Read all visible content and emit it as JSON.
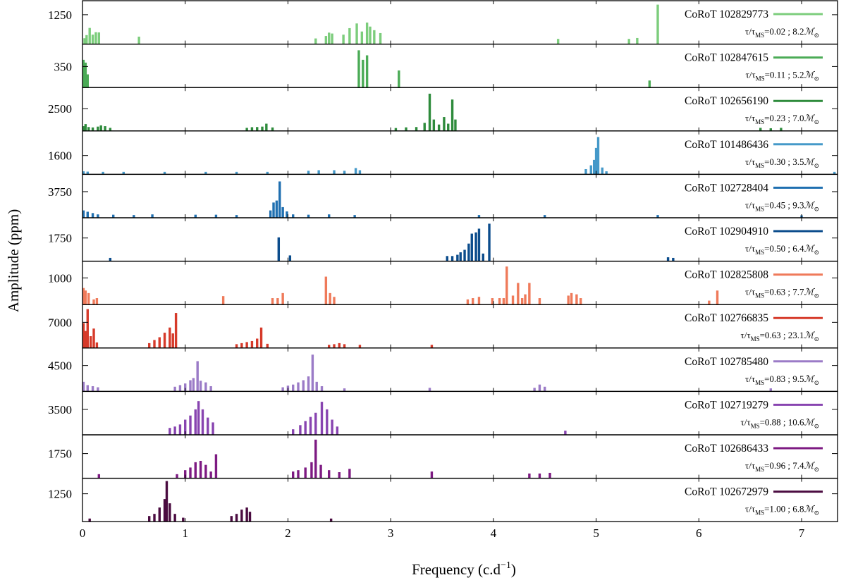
{
  "chart_data": {
    "type": "bar",
    "xlabel": "Frequency (c.d",
    "xlabel_sup": "−1",
    "xlabel_close": ")",
    "ylabel": "Amplitude (ppm)",
    "xlim": [
      0,
      7.35
    ],
    "xticks": [
      0,
      1,
      2,
      3,
      4,
      5,
      6,
      7
    ],
    "panels": [
      {
        "star": "CoRoT 102829773",
        "color": "#7ccd7c",
        "tau": "0.02",
        "mass": "8.2",
        "ytick": 1250,
        "ytick_label": "1250",
        "ymax": 1750,
        "peaks": [
          [
            0.02,
            200
          ],
          [
            0.04,
            340
          ],
          [
            0.07,
            660
          ],
          [
            0.1,
            360
          ],
          [
            0.13,
            470
          ],
          [
            0.16,
            460
          ],
          [
            0.55,
            270
          ],
          [
            2.27,
            190
          ],
          [
            2.37,
            300
          ],
          [
            2.4,
            450
          ],
          [
            2.43,
            410
          ],
          [
            2.54,
            360
          ],
          [
            2.6,
            650
          ],
          [
            2.67,
            860
          ],
          [
            2.72,
            500
          ],
          [
            2.77,
            900
          ],
          [
            2.8,
            720
          ],
          [
            2.84,
            560
          ],
          [
            2.9,
            430
          ],
          [
            4.63,
            170
          ],
          [
            5.32,
            170
          ],
          [
            5.4,
            210
          ],
          [
            5.6,
            1700
          ]
        ]
      },
      {
        "star": "CoRoT 102847615",
        "color": "#4bab56",
        "tau": "0.11",
        "mass": "5.2",
        "ytick": 350,
        "ytick_label": "350",
        "ymax": 700,
        "peaks": [
          [
            0.01,
            470
          ],
          [
            0.03,
            420
          ],
          [
            0.05,
            210
          ],
          [
            2.69,
            640
          ],
          [
            2.73,
            470
          ],
          [
            2.77,
            550
          ],
          [
            3.08,
            280
          ],
          [
            5.52,
            100
          ]
        ]
      },
      {
        "star": "CoRoT 102656190",
        "color": "#2e8b3c",
        "tau": "0.23",
        "mass": "7.0",
        "ytick": 2500,
        "ytick_label": "2500",
        "ymax": 4700,
        "peaks": [
          [
            0.01,
            400
          ],
          [
            0.03,
            650
          ],
          [
            0.06,
            300
          ],
          [
            0.1,
            250
          ],
          [
            0.15,
            350
          ],
          [
            0.18,
            500
          ],
          [
            0.22,
            400
          ],
          [
            0.27,
            200
          ],
          [
            1.6,
            200
          ],
          [
            1.65,
            280
          ],
          [
            1.7,
            300
          ],
          [
            1.75,
            350
          ],
          [
            1.79,
            700
          ],
          [
            1.85,
            250
          ],
          [
            3.05,
            180
          ],
          [
            3.15,
            260
          ],
          [
            3.25,
            300
          ],
          [
            3.33,
            800
          ],
          [
            3.38,
            4300
          ],
          [
            3.42,
            1200
          ],
          [
            3.47,
            600
          ],
          [
            3.52,
            1500
          ],
          [
            3.56,
            700
          ],
          [
            3.6,
            3600
          ],
          [
            3.63,
            1200
          ],
          [
            6.6,
            200
          ],
          [
            6.7,
            150
          ],
          [
            6.8,
            200
          ]
        ]
      },
      {
        "star": "CoRoT 101486436",
        "color": "#4599c9",
        "tau": "0.30",
        "mass": "3.5",
        "ytick": 1600,
        "ytick_label": "1600",
        "ymax": 3600,
        "peaks": [
          [
            0.01,
            150
          ],
          [
            0.05,
            120
          ],
          [
            0.2,
            100
          ],
          [
            0.4,
            100
          ],
          [
            0.8,
            100
          ],
          [
            1.2,
            100
          ],
          [
            1.5,
            100
          ],
          [
            1.8,
            100
          ],
          [
            2.2,
            200
          ],
          [
            2.3,
            250
          ],
          [
            2.45,
            250
          ],
          [
            2.55,
            200
          ],
          [
            2.66,
            450
          ],
          [
            2.7,
            250
          ],
          [
            4.9,
            350
          ],
          [
            4.95,
            700
          ],
          [
            4.98,
            1200
          ],
          [
            5.0,
            2300
          ],
          [
            5.02,
            3300
          ],
          [
            5.06,
            500
          ],
          [
            5.1,
            150
          ],
          [
            7.32,
            100
          ]
        ]
      },
      {
        "star": "CoRoT 102728404",
        "color": "#1f6fb0",
        "tau": "0.45",
        "mass": "9.3",
        "ytick": 3750,
        "ytick_label": "3750",
        "ymax": 5950,
        "peaks": [
          [
            0.01,
            900
          ],
          [
            0.05,
            700
          ],
          [
            0.1,
            500
          ],
          [
            0.15,
            300
          ],
          [
            0.3,
            250
          ],
          [
            0.5,
            200
          ],
          [
            0.68,
            300
          ],
          [
            1.1,
            250
          ],
          [
            1.3,
            250
          ],
          [
            1.5,
            200
          ],
          [
            1.83,
            900
          ],
          [
            1.86,
            2100
          ],
          [
            1.89,
            2400
          ],
          [
            1.92,
            5300
          ],
          [
            1.95,
            1400
          ],
          [
            1.99,
            750
          ],
          [
            2.05,
            300
          ],
          [
            2.2,
            250
          ],
          [
            2.4,
            300
          ],
          [
            2.65,
            200
          ],
          [
            3.86,
            200
          ],
          [
            4.5,
            200
          ],
          [
            5.6,
            200
          ],
          [
            7.0,
            150
          ]
        ]
      },
      {
        "star": "CoRoT 102904910",
        "color": "#0b4c8c",
        "tau": "0.50",
        "mass": "6.4",
        "ytick": 1750,
        "ytick_label": "1750",
        "ymax": 3150,
        "peaks": [
          [
            0.27,
            150
          ],
          [
            1.91,
            1800
          ],
          [
            2.02,
            350
          ],
          [
            3.55,
            300
          ],
          [
            3.6,
            300
          ],
          [
            3.65,
            400
          ],
          [
            3.68,
            600
          ],
          [
            3.72,
            800
          ],
          [
            3.76,
            1300
          ],
          [
            3.79,
            2100
          ],
          [
            3.83,
            2200
          ],
          [
            3.86,
            2500
          ],
          [
            3.9,
            500
          ],
          [
            3.96,
            2900
          ],
          [
            5.7,
            200
          ],
          [
            5.75,
            150
          ]
        ]
      },
      {
        "star": "CoRoT 102825808",
        "color": "#ef7a5a",
        "tau": "0.63",
        "mass": "7.7",
        "ytick": 1000,
        "ytick_label": "1000",
        "ymax": 1550,
        "peaks": [
          [
            0.01,
            600
          ],
          [
            0.03,
            500
          ],
          [
            0.06,
            400
          ],
          [
            0.11,
            150
          ],
          [
            0.14,
            200
          ],
          [
            1.37,
            280
          ],
          [
            1.85,
            200
          ],
          [
            1.9,
            200
          ],
          [
            1.95,
            400
          ],
          [
            2.37,
            1050
          ],
          [
            2.41,
            400
          ],
          [
            2.45,
            250
          ],
          [
            3.75,
            150
          ],
          [
            3.8,
            200
          ],
          [
            3.86,
            250
          ],
          [
            3.99,
            200
          ],
          [
            4.06,
            200
          ],
          [
            4.1,
            200
          ],
          [
            4.13,
            1450
          ],
          [
            4.19,
            300
          ],
          [
            4.24,
            800
          ],
          [
            4.28,
            200
          ],
          [
            4.31,
            350
          ],
          [
            4.35,
            800
          ],
          [
            4.45,
            200
          ],
          [
            4.73,
            300
          ],
          [
            4.76,
            400
          ],
          [
            4.81,
            350
          ],
          [
            4.85,
            200
          ],
          [
            6.1,
            100
          ],
          [
            6.18,
            500
          ]
        ]
      },
      {
        "star": "CoRoT 102766835",
        "color": "#d63a2a",
        "tau": "0.63",
        "mass": "23.1",
        "ytick": 7000,
        "ytick_label": "7000",
        "ymax": 11300,
        "peaks": [
          [
            0.01,
            6800
          ],
          [
            0.03,
            4500
          ],
          [
            0.05,
            10800
          ],
          [
            0.08,
            3000
          ],
          [
            0.11,
            5200
          ],
          [
            0.14,
            1200
          ],
          [
            0.65,
            1000
          ],
          [
            0.7,
            1900
          ],
          [
            0.75,
            2700
          ],
          [
            0.8,
            4000
          ],
          [
            0.85,
            5500
          ],
          [
            0.88,
            3800
          ],
          [
            0.91,
            9700
          ],
          [
            1.5,
            700
          ],
          [
            1.55,
            1000
          ],
          [
            1.6,
            1300
          ],
          [
            1.65,
            1600
          ],
          [
            1.7,
            2300
          ],
          [
            1.74,
            5500
          ],
          [
            1.8,
            800
          ],
          [
            2.4,
            500
          ],
          [
            2.45,
            700
          ],
          [
            2.5,
            1000
          ],
          [
            2.55,
            700
          ],
          [
            2.7,
            500
          ],
          [
            3.4,
            500
          ]
        ]
      },
      {
        "star": "CoRoT 102785480",
        "color": "#9b7bc7",
        "tau": "0.83",
        "mass": "9.5",
        "ytick": 4500,
        "ytick_label": "4500",
        "ymax": 7200,
        "peaks": [
          [
            0.01,
            1500
          ],
          [
            0.05,
            900
          ],
          [
            0.1,
            700
          ],
          [
            0.15,
            500
          ],
          [
            0.9,
            600
          ],
          [
            0.95,
            900
          ],
          [
            1.0,
            1200
          ],
          [
            1.05,
            1800
          ],
          [
            1.08,
            2200
          ],
          [
            1.12,
            5300
          ],
          [
            1.15,
            1700
          ],
          [
            1.2,
            1400
          ],
          [
            1.25,
            700
          ],
          [
            1.95,
            500
          ],
          [
            2.0,
            800
          ],
          [
            2.05,
            1000
          ],
          [
            2.1,
            1400
          ],
          [
            2.15,
            1800
          ],
          [
            2.2,
            2500
          ],
          [
            2.24,
            6500
          ],
          [
            2.28,
            1500
          ],
          [
            2.33,
            700
          ],
          [
            2.55,
            300
          ],
          [
            3.38,
            400
          ],
          [
            4.4,
            400
          ],
          [
            4.45,
            1000
          ],
          [
            4.5,
            600
          ],
          [
            6.7,
            300
          ]
        ]
      },
      {
        "star": "CoRoT 102719279",
        "color": "#8844b0",
        "tau": "0.88",
        "mass": "10.6",
        "ytick": 3500,
        "ytick_label": "3500",
        "ymax": 5700,
        "peaks": [
          [
            0.85,
            800
          ],
          [
            0.9,
            1000
          ],
          [
            0.95,
            1300
          ],
          [
            1.0,
            2000
          ],
          [
            1.05,
            2600
          ],
          [
            1.1,
            3500
          ],
          [
            1.13,
            4700
          ],
          [
            1.17,
            3500
          ],
          [
            1.22,
            2300
          ],
          [
            1.27,
            1600
          ],
          [
            2.05,
            600
          ],
          [
            2.12,
            1200
          ],
          [
            2.17,
            1800
          ],
          [
            2.22,
            2400
          ],
          [
            2.27,
            3000
          ],
          [
            2.33,
            4600
          ],
          [
            2.38,
            3500
          ],
          [
            2.43,
            2000
          ],
          [
            2.48,
            1000
          ],
          [
            4.7,
            400
          ]
        ]
      },
      {
        "star": "CoRoT 102686433",
        "color": "#7d1a82",
        "tau": "0.96",
        "mass": "7.4",
        "ytick": 1750,
        "ytick_label": "1750",
        "ymax": 2950,
        "peaks": [
          [
            0.16,
            200
          ],
          [
            0.92,
            200
          ],
          [
            1.0,
            500
          ],
          [
            1.05,
            700
          ],
          [
            1.1,
            1100
          ],
          [
            1.15,
            1200
          ],
          [
            1.2,
            900
          ],
          [
            1.25,
            400
          ],
          [
            1.3,
            1700
          ],
          [
            2.05,
            400
          ],
          [
            2.1,
            500
          ],
          [
            2.17,
            700
          ],
          [
            2.23,
            1100
          ],
          [
            2.27,
            2800
          ],
          [
            2.32,
            900
          ],
          [
            2.4,
            500
          ],
          [
            2.5,
            350
          ],
          [
            2.6,
            600
          ],
          [
            3.4,
            400
          ],
          [
            4.35,
            250
          ],
          [
            4.45,
            250
          ],
          [
            4.55,
            300
          ]
        ]
      },
      {
        "star": "CoRoT 102672979",
        "color": "#4a0b40",
        "tau": "1.00",
        "mass": "6.8",
        "ytick": 1250,
        "ytick_label": "1250",
        "ymax": 1850,
        "peaks": [
          [
            0.07,
            80
          ],
          [
            0.65,
            200
          ],
          [
            0.7,
            300
          ],
          [
            0.75,
            600
          ],
          [
            0.8,
            1000
          ],
          [
            0.82,
            1850
          ],
          [
            0.85,
            800
          ],
          [
            0.9,
            300
          ],
          [
            0.98,
            120
          ],
          [
            1.45,
            200
          ],
          [
            1.5,
            300
          ],
          [
            1.55,
            500
          ],
          [
            1.6,
            600
          ],
          [
            1.63,
            400
          ],
          [
            2.42,
            80
          ]
        ]
      }
    ]
  }
}
